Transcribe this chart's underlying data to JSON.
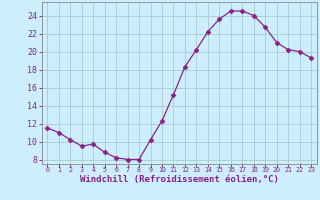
{
  "x": [
    0,
    1,
    2,
    3,
    4,
    5,
    6,
    7,
    8,
    9,
    10,
    11,
    12,
    13,
    14,
    15,
    16,
    17,
    18,
    19,
    20,
    21,
    22,
    23
  ],
  "y": [
    11.5,
    11.0,
    10.2,
    9.5,
    9.7,
    8.8,
    8.2,
    8.0,
    8.0,
    10.2,
    12.3,
    15.2,
    18.3,
    20.2,
    22.2,
    23.6,
    24.5,
    24.5,
    24.0,
    22.7,
    21.0,
    20.2,
    20.0,
    19.3
  ],
  "line_color": "#882288",
  "marker": "D",
  "marker_size": 2.5,
  "xlabel": "Windchill (Refroidissement éolien,°C)",
  "xlabel_fontsize": 6.5,
  "ylabel_ticks": [
    8,
    10,
    12,
    14,
    16,
    18,
    20,
    22,
    24
  ],
  "xtick_labels": [
    "0",
    "1",
    "2",
    "3",
    "4",
    "5",
    "6",
    "7",
    "8",
    "9",
    "10",
    "11",
    "12",
    "13",
    "14",
    "15",
    "16",
    "17",
    "18",
    "19",
    "20",
    "21",
    "22",
    "23"
  ],
  "ylim": [
    7.5,
    25.5
  ],
  "xlim": [
    -0.5,
    23.5
  ],
  "bg_color": "#cceeff",
  "grid_color": "#aacccc",
  "spine_color": "#888888"
}
